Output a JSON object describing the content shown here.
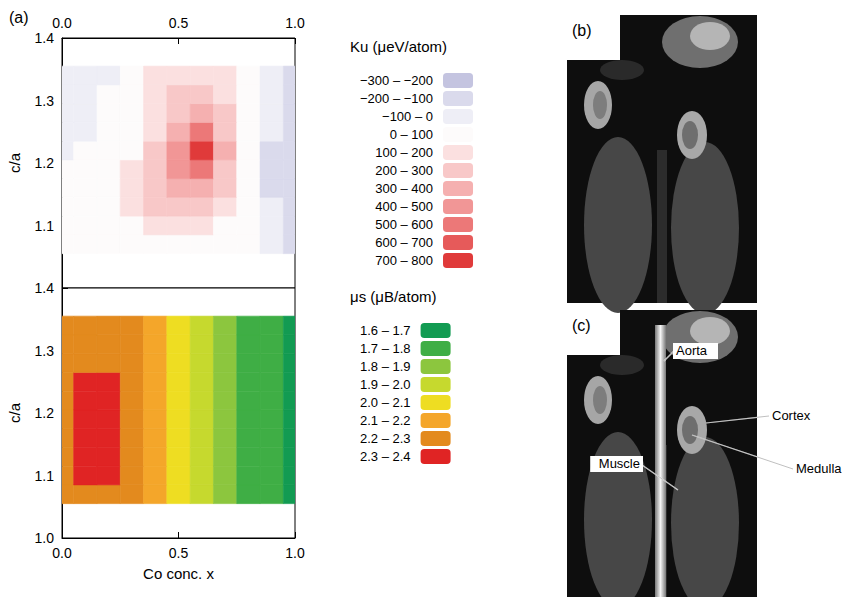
{
  "chart_data": [
    {
      "type": "heatmap",
      "ylabel": "c/a",
      "x": [
        0,
        0.1,
        0.2,
        0.3,
        0.4,
        0.5,
        0.6,
        0.7,
        0.8,
        0.9,
        1.0
      ],
      "y": [
        1.07,
        1.1,
        1.13,
        1.16,
        1.19,
        1.22,
        1.25,
        1.28,
        1.31,
        1.34
      ],
      "values": [
        [
          20,
          20,
          30,
          40,
          60,
          80,
          60,
          40,
          10,
          -60,
          -120
        ],
        [
          20,
          30,
          40,
          80,
          150,
          180,
          150,
          90,
          20,
          -80,
          -150
        ],
        [
          20,
          30,
          50,
          120,
          220,
          260,
          250,
          150,
          40,
          -90,
          -170
        ],
        [
          10,
          20,
          50,
          130,
          250,
          330,
          380,
          220,
          60,
          -100,
          -180
        ],
        [
          10,
          20,
          40,
          110,
          240,
          420,
          600,
          300,
          70,
          -100,
          -180
        ],
        [
          0,
          10,
          30,
          90,
          220,
          450,
          750,
          330,
          60,
          -100,
          -170
        ],
        [
          0,
          0,
          20,
          70,
          190,
          380,
          520,
          280,
          50,
          -90,
          -160
        ],
        [
          -10,
          0,
          10,
          60,
          170,
          300,
          320,
          220,
          40,
          -80,
          -140
        ],
        [
          -20,
          -10,
          10,
          50,
          150,
          240,
          240,
          160,
          30,
          -60,
          -120
        ],
        [
          -20,
          -10,
          0,
          40,
          120,
          200,
          180,
          120,
          20,
          -40,
          -100
        ]
      ],
      "xlim": [
        0,
        1.0
      ],
      "ylim": [
        1.0,
        1.4
      ],
      "xticks": [
        {
          "value": 0,
          "label": "0.0"
        },
        0.5,
        {
          "value": 1,
          "label": "1.0"
        }
      ],
      "yticks": [
        1.1,
        1.2,
        1.3,
        1.4
      ],
      "colorbar": {
        "title": "Ku (μeV/atom)",
        "pieces": [
          {
            "min": 700,
            "max": 800,
            "label": "700 – 800",
            "color": "#e03a3a"
          },
          {
            "min": 600,
            "max": 700,
            "label": "600 – 700",
            "color": "#e65a5a"
          },
          {
            "min": 500,
            "max": 600,
            "label": "500 – 600",
            "color": "#ec7878"
          },
          {
            "min": 400,
            "max": 500,
            "label": "400 – 500",
            "color": "#f19696"
          },
          {
            "min": 300,
            "max": 400,
            "label": "300 – 400",
            "color": "#f5b0b0"
          },
          {
            "min": 200,
            "max": 300,
            "label": "200 – 300",
            "color": "#f8c8c8"
          },
          {
            "min": 100,
            "max": 200,
            "label": "100 – 200",
            "color": "#fbe0e0"
          },
          {
            "min": 0,
            "max": 100,
            "label": "0 – 100",
            "color": "#fdfbfb"
          },
          {
            "min": -100,
            "max": 0,
            "label": "−100 – 0",
            "color": "#eeeef6"
          },
          {
            "min": -200,
            "max": -100,
            "label": "−200 – −100",
            "color": "#dadaec"
          },
          {
            "min": -300,
            "max": -200,
            "label": "−300 – −200",
            "color": "#c4c4e0"
          }
        ]
      }
    },
    {
      "type": "heatmap",
      "xlabel": "Co conc. x",
      "ylabel": "c/a",
      "x": [
        0,
        0.1,
        0.2,
        0.3,
        0.4,
        0.5,
        0.6,
        0.7,
        0.8,
        0.9,
        1.0
      ],
      "y": [
        1.07,
        1.1,
        1.13,
        1.16,
        1.19,
        1.22,
        1.25,
        1.28,
        1.31,
        1.34
      ],
      "values": [
        [
          2.25,
          2.28,
          2.28,
          2.25,
          2.18,
          2.08,
          1.98,
          1.88,
          1.79,
          1.72,
          1.68
        ],
        [
          2.27,
          2.31,
          2.32,
          2.27,
          2.19,
          2.09,
          1.99,
          1.89,
          1.8,
          1.72,
          1.67
        ],
        [
          2.28,
          2.33,
          2.34,
          2.28,
          2.2,
          2.1,
          2.0,
          1.9,
          1.8,
          1.72,
          1.67
        ],
        [
          2.28,
          2.34,
          2.35,
          2.28,
          2.2,
          2.1,
          2.0,
          1.9,
          1.8,
          1.72,
          1.66
        ],
        [
          2.27,
          2.34,
          2.35,
          2.28,
          2.2,
          2.1,
          2.0,
          1.9,
          1.8,
          1.72,
          1.66
        ],
        [
          2.26,
          2.33,
          2.34,
          2.27,
          2.19,
          2.09,
          1.99,
          1.9,
          1.8,
          1.72,
          1.66
        ],
        [
          2.25,
          2.31,
          2.32,
          2.26,
          2.18,
          2.08,
          1.98,
          1.89,
          1.8,
          1.72,
          1.66
        ],
        [
          2.24,
          2.29,
          2.3,
          2.25,
          2.17,
          2.07,
          1.98,
          1.88,
          1.79,
          1.71,
          1.66
        ],
        [
          2.23,
          2.27,
          2.28,
          2.24,
          2.16,
          2.06,
          1.97,
          1.88,
          1.79,
          1.71,
          1.66
        ],
        [
          2.22,
          2.25,
          2.26,
          2.22,
          2.15,
          2.06,
          1.97,
          1.88,
          1.79,
          1.71,
          1.65
        ]
      ],
      "xlim": [
        0,
        1.0
      ],
      "ylim": [
        1.0,
        1.4
      ],
      "xticks": [
        {
          "value": 0,
          "label": "0.0"
        },
        0.5,
        {
          "value": 1,
          "label": "1.0"
        }
      ],
      "yticks": [
        {
          "value": 1,
          "label": "1.0"
        },
        1.1,
        1.2,
        1.3,
        1.4
      ],
      "colorbar": {
        "title": "μs (μB/atom)",
        "pieces": [
          {
            "min": 2.3,
            "max": 2.4,
            "label": "2.3 – 2.4",
            "color": "#e02424"
          },
          {
            "min": 2.2,
            "max": 2.3,
            "label": "2.2 – 2.3",
            "color": "#e38a1e"
          },
          {
            "min": 2.1,
            "max": 2.2,
            "label": "2.1 – 2.2",
            "color": "#f4a62a"
          },
          {
            "min": 2.0,
            "max": 2.1,
            "label": "2.0 – 2.1",
            "color": "#eedd22"
          },
          {
            "min": 1.9,
            "max": 2.0,
            "label": "1.9 – 2.0",
            "color": "#c6d92e"
          },
          {
            "min": 1.8,
            "max": 1.9,
            "label": "1.8 – 1.9",
            "color": "#8cc63e"
          },
          {
            "min": 1.7,
            "max": 1.8,
            "label": "1.7 – 1.8",
            "color": "#3fae45"
          },
          {
            "min": 1.6,
            "max": 1.7,
            "label": "1.6 – 1.7",
            "color": "#129b52"
          }
        ]
      }
    }
  ],
  "panel_label": "(a)",
  "images": [
    {
      "panel_label": "(b)"
    },
    {
      "panel_label": "(c)",
      "annotations": [
        "Aorta",
        "Cortex",
        "Medulla",
        "Muscle"
      ]
    }
  ]
}
